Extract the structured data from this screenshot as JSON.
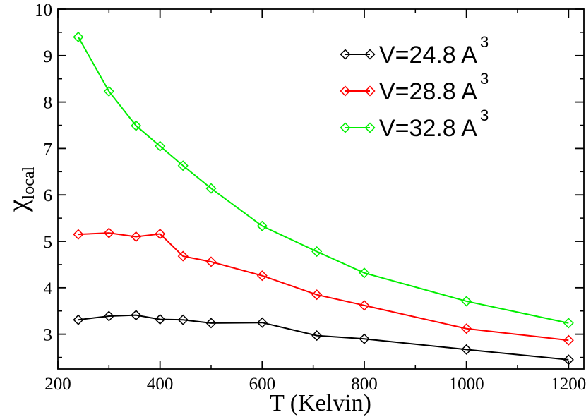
{
  "chart_data": {
    "type": "line",
    "title": "",
    "xlabel": "T (Kelvin)",
    "ylabel_symbol": "χ",
    "ylabel_subscript": "local",
    "xlim": [
      200,
      1230
    ],
    "ylim": [
      2.25,
      10
    ],
    "xticks": [
      200,
      400,
      600,
      800,
      1000,
      1200
    ],
    "yticks": [
      3,
      4,
      5,
      6,
      7,
      8,
      9,
      10
    ],
    "x_minor_step": 100,
    "y_minor_step": 0.5,
    "grid": false,
    "legend_position": "top-right",
    "marker": "diamond-open",
    "series": [
      {
        "name": "V=24.8 A",
        "superscript": "3",
        "color": "#000000",
        "x": [
          240,
          300,
          353,
          400,
          445,
          500,
          600,
          707,
          800,
          1000,
          1200
        ],
        "y": [
          3.31,
          3.39,
          3.41,
          3.32,
          3.31,
          3.24,
          3.25,
          2.97,
          2.9,
          2.67,
          2.45
        ]
      },
      {
        "name": "V=28.8 A",
        "superscript": "3",
        "color": "#ff0000",
        "x": [
          240,
          300,
          353,
          400,
          445,
          500,
          600,
          707,
          800,
          1000,
          1200
        ],
        "y": [
          5.15,
          5.18,
          5.1,
          5.16,
          4.68,
          4.56,
          4.26,
          3.85,
          3.62,
          3.12,
          2.87
        ]
      },
      {
        "name": "V=32.8 A",
        "superscript": "3",
        "color": "#00ee00",
        "x": [
          240,
          300,
          353,
          400,
          445,
          500,
          600,
          707,
          800,
          1000,
          1200
        ],
        "y": [
          9.4,
          8.23,
          7.49,
          7.05,
          6.63,
          6.14,
          5.33,
          4.78,
          4.32,
          3.71,
          3.24
        ]
      }
    ]
  }
}
